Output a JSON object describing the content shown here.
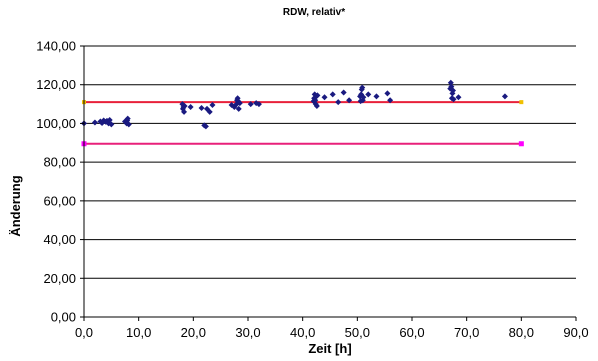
{
  "chart_data": {
    "type": "scatter",
    "title": "RDW, relativ*",
    "xlabel": "Zeit [h]",
    "ylabel": "Änderung",
    "xlim": [
      0,
      90
    ],
    "ylim": [
      0,
      140
    ],
    "x_ticks": [
      0,
      10,
      20,
      30,
      40,
      50,
      60,
      70,
      80,
      90
    ],
    "y_ticks": [
      0,
      20,
      40,
      60,
      80,
      100,
      120,
      140
    ],
    "x_tick_labels": [
      "0,0",
      "10,0",
      "20,0",
      "30,0",
      "40,0",
      "50,0",
      "60,0",
      "70,0",
      "80,0",
      "90,0"
    ],
    "y_tick_labels": [
      "0,00",
      "20,00",
      "40,00",
      "60,00",
      "80,00",
      "100,00",
      "120,00",
      "140,00"
    ],
    "grid": "horizontal",
    "legend": "none",
    "colors": {
      "points": "#1a1a80",
      "upper_limit": "#e8203a",
      "lower_limit": "#e8207a",
      "upper_marker": "#f0c000",
      "lower_marker": "#ff00ff",
      "axis": "#000000",
      "grid": "#000000"
    },
    "series": [
      {
        "marker": "diamond",
        "points": [
          [
            0,
            100
          ],
          [
            2,
            100.5
          ],
          [
            3,
            101
          ],
          [
            3.3,
            100.2
          ],
          [
            3.6,
            101.5
          ],
          [
            4,
            100.8
          ],
          [
            4.2,
            101.3
          ],
          [
            4.5,
            100
          ],
          [
            4.7,
            101.8
          ],
          [
            5,
            99.5
          ],
          [
            7.5,
            101
          ],
          [
            7.8,
            100
          ],
          [
            8,
            102.5
          ],
          [
            8.2,
            99.5
          ],
          [
            7.9,
            101.5
          ],
          [
            18,
            110
          ],
          [
            18.2,
            108.5
          ],
          [
            18.3,
            106
          ],
          [
            18.1,
            107.5
          ],
          [
            18.4,
            109
          ],
          [
            19.5,
            108.5
          ],
          [
            21.5,
            108
          ],
          [
            22,
            99
          ],
          [
            22.3,
            98.5
          ],
          [
            22.5,
            107.5
          ],
          [
            23,
            106
          ],
          [
            23.5,
            109.5
          ],
          [
            27,
            109.5
          ],
          [
            27.5,
            108.5
          ],
          [
            27.9,
            110
          ],
          [
            28,
            112
          ],
          [
            28.1,
            113
          ],
          [
            28.2,
            111.5
          ],
          [
            28.3,
            107.5
          ],
          [
            28.5,
            110.5
          ],
          [
            30.5,
            110
          ],
          [
            31.5,
            110.5
          ],
          [
            32,
            110
          ],
          [
            42,
            111.5
          ],
          [
            42.1,
            113
          ],
          [
            42.2,
            115
          ],
          [
            42.3,
            112
          ],
          [
            42.4,
            110
          ],
          [
            42.5,
            114
          ],
          [
            42.6,
            109
          ],
          [
            42.7,
            114.5
          ],
          [
            44,
            113.5
          ],
          [
            45.5,
            115
          ],
          [
            46.5,
            111
          ],
          [
            47.5,
            116
          ],
          [
            48.5,
            112
          ],
          [
            50.5,
            114
          ],
          [
            50.6,
            111.5
          ],
          [
            50.7,
            115
          ],
          [
            50.8,
            117.5
          ],
          [
            50.9,
            118.5
          ],
          [
            51,
            112
          ],
          [
            51.1,
            113.5
          ],
          [
            52,
            115
          ],
          [
            53.5,
            114
          ],
          [
            55.5,
            115.5
          ],
          [
            56,
            112
          ],
          [
            67,
            118
          ],
          [
            67.1,
            121
          ],
          [
            67.2,
            119
          ],
          [
            67.3,
            113
          ],
          [
            67.4,
            115.5
          ],
          [
            67.5,
            117
          ],
          [
            67.6,
            112.5
          ],
          [
            68.5,
            113.5
          ],
          [
            77,
            114
          ]
        ]
      },
      {
        "marker": "none",
        "line": "upper_limit",
        "points": [
          [
            0,
            111
          ],
          [
            80,
            111
          ]
        ]
      },
      {
        "marker": "square",
        "line": "lower_limit",
        "points": [
          [
            0,
            89.5
          ],
          [
            80,
            89.5
          ]
        ]
      }
    ]
  }
}
